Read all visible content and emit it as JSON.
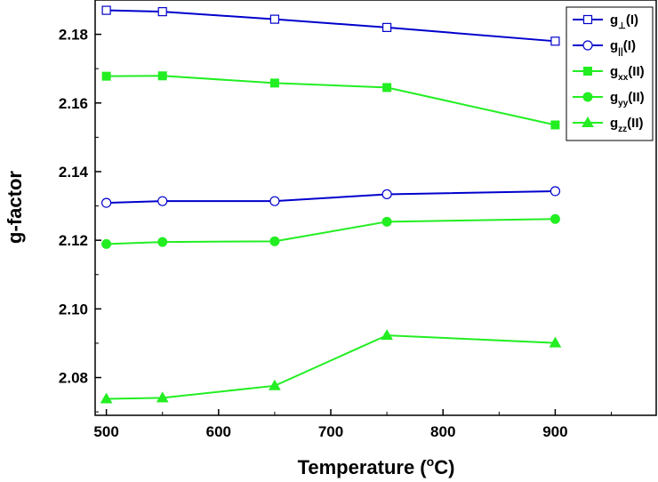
{
  "chart_data": {
    "type": "line",
    "title": "",
    "xlabel": "Temperature (°C)",
    "xlabel_parts": {
      "main": "Temperature (",
      "sup": "o",
      "rest": "C)"
    },
    "ylabel": "g-factor",
    "xlim": [
      490,
      990
    ],
    "ylim": [
      2.069,
      2.19
    ],
    "xticks": [
      500,
      600,
      700,
      800,
      900
    ],
    "xtick_labels": [
      "500",
      "600",
      "700",
      "800",
      "900"
    ],
    "yticks": [
      2.08,
      2.1,
      2.12,
      2.14,
      2.16,
      2.18
    ],
    "ytick_labels": [
      "2.08",
      "2.10",
      "2.12",
      "2.14",
      "2.16",
      "2.18"
    ],
    "legend_position": "top-right",
    "x": [
      500,
      550,
      650,
      750,
      900
    ],
    "series": [
      {
        "name": "g⊥(I)",
        "base": "g",
        "sub": "⊥",
        "suffix": "(I)",
        "color": "#0000cc",
        "marker": "open-square",
        "values": [
          2.187,
          2.1866,
          2.1844,
          2.182,
          2.178
        ]
      },
      {
        "name": "g||(I)",
        "base": "g",
        "sub": "||",
        "suffix": "(I)",
        "color": "#0000cc",
        "marker": "open-circle",
        "values": [
          2.1309,
          2.1314,
          2.1314,
          2.1334,
          2.1343
        ]
      },
      {
        "name": "gxx(II)",
        "base": "g",
        "sub": "xx",
        "suffix": "(II)",
        "color": "#22ee22",
        "marker": "filled-square",
        "values": [
          2.1678,
          2.1679,
          2.1658,
          2.1645,
          2.1536
        ]
      },
      {
        "name": "gyy(II)",
        "base": "g",
        "sub": "yy",
        "suffix": "(II)",
        "color": "#22ee22",
        "marker": "filled-circle",
        "values": [
          2.1189,
          2.1195,
          2.1197,
          2.1254,
          2.1262
        ]
      },
      {
        "name": "gzz(II)",
        "base": "g",
        "sub": "zz",
        "suffix": "(II)",
        "color": "#22ee22",
        "marker": "filled-triangle",
        "values": [
          2.0738,
          2.0741,
          2.0776,
          2.0923,
          2.0901
        ]
      }
    ]
  }
}
